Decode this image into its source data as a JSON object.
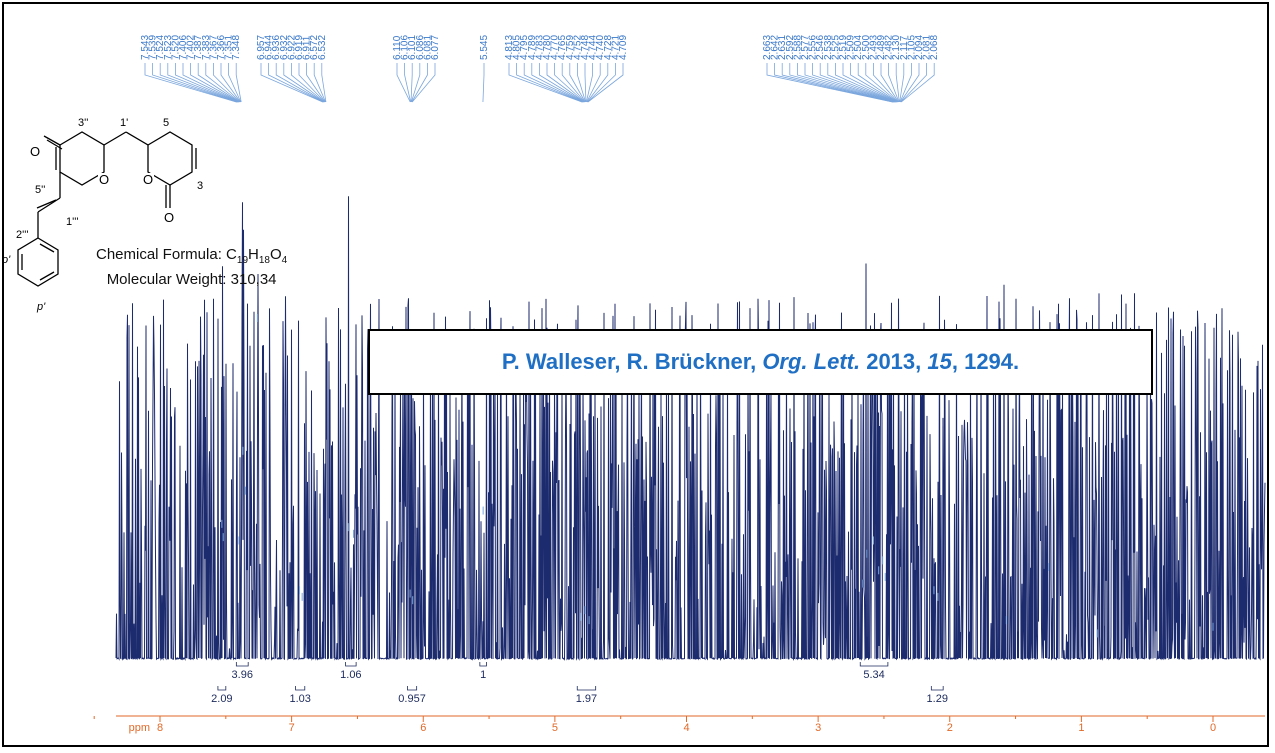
{
  "compound": {
    "formula_label": "Chemical Formula:",
    "formula_parts": [
      [
        "C",
        "19"
      ],
      [
        "H",
        "18"
      ],
      [
        "O",
        "4"
      ]
    ],
    "weight_label": "Molecular Weight:",
    "weight_value": "310,34",
    "atom_labels": [
      "3''",
      "1'",
      "5",
      "5''",
      "3",
      "2'''",
      "1'''",
      "o'",
      "p'"
    ]
  },
  "citation": {
    "authors": "P. Walleser, R. Brückner, ",
    "journal": "Org. Lett.",
    "year": " 2013, ",
    "volume": "15",
    "pages": ", 1294."
  },
  "chart_data": {
    "type": "line",
    "xlabel": "ppm",
    "x_reversed": true,
    "x_ticks": [
      "8",
      "7",
      "6",
      "5",
      "4",
      "3",
      "2",
      "1",
      "0"
    ],
    "xlim": [
      8.6,
      -0.6
    ],
    "peak_label_groups": [
      [
        "7.543",
        "7.539",
        "7.524",
        "7.523",
        "7.520",
        "7.406",
        "7.402",
        "7.387",
        "7.383",
        "7.367",
        "7.366",
        "7.351",
        "7.348"
      ],
      [
        "6.957",
        "6.944",
        "6.936",
        "6.932",
        "6.922",
        "6.919",
        "6.911",
        "6.572",
        "6.532"
      ],
      [
        "6.110",
        "6.106",
        "6.101",
        "6.086",
        "6.081",
        "6.077"
      ],
      [
        "5.545"
      ],
      [
        "4.813",
        "4.805",
        "4.795",
        "4.789",
        "4.783",
        "4.780",
        "4.770",
        "4.765",
        "4.759",
        "4.752",
        "4.748",
        "4.744",
        "4.740",
        "4.728",
        "4.721",
        "4.709"
      ],
      [
        "2.663",
        "2.642",
        "2.631",
        "2.592",
        "2.588",
        "2.577",
        "2.556",
        "2.546",
        "2.538",
        "2.525",
        "2.519",
        "2.509",
        "2.504",
        "2.500",
        "2.493",
        "2.489",
        "2.482",
        "2.130",
        "2.117",
        "2.105",
        "2.094",
        "2.081",
        "2.068"
      ]
    ],
    "peaks": [
      {
        "ppm": 7.53,
        "height": 0.38
      },
      {
        "ppm": 7.52,
        "height": 0.34
      },
      {
        "ppm": 7.4,
        "height": 0.33
      },
      {
        "ppm": 7.37,
        "height": 0.6
      },
      {
        "ppm": 7.35,
        "height": 0.48
      },
      {
        "ppm": 7.26,
        "height": 1.0
      },
      {
        "ppm": 6.94,
        "height": 0.18
      },
      {
        "ppm": 6.92,
        "height": 0.16
      },
      {
        "ppm": 6.57,
        "height": 0.37
      },
      {
        "ppm": 6.53,
        "height": 0.35
      },
      {
        "ppm": 6.1,
        "height": 0.17
      },
      {
        "ppm": 6.08,
        "height": 0.15
      },
      {
        "ppm": 5.545,
        "height": 0.42
      },
      {
        "ppm": 4.8,
        "height": 0.1
      },
      {
        "ppm": 4.77,
        "height": 0.12
      },
      {
        "ppm": 4.74,
        "height": 0.09
      },
      {
        "ppm": 2.66,
        "height": 0.2
      },
      {
        "ppm": 2.63,
        "height": 0.29
      },
      {
        "ppm": 2.58,
        "height": 0.33
      },
      {
        "ppm": 2.54,
        "height": 0.24
      },
      {
        "ppm": 2.51,
        "height": 0.27
      },
      {
        "ppm": 2.49,
        "height": 0.22
      },
      {
        "ppm": 2.12,
        "height": 0.18
      },
      {
        "ppm": 2.09,
        "height": 0.16
      },
      {
        "ppm": 1.57,
        "height": 0.09
      },
      {
        "ppm": 1.25,
        "height": 0.25
      },
      {
        "ppm": 0.88,
        "height": 0.05
      },
      {
        "ppm": 0.0,
        "height": 0.07
      }
    ],
    "integrals": [
      {
        "from": 7.56,
        "to": 7.5,
        "value": "2.09",
        "row": 2
      },
      {
        "from": 7.42,
        "to": 7.33,
        "value": "3.96",
        "row": 1
      },
      {
        "from": 6.97,
        "to": 6.9,
        "value": "1.03",
        "row": 2
      },
      {
        "from": 6.59,
        "to": 6.51,
        "value": "1.06",
        "row": 1
      },
      {
        "from": 6.12,
        "to": 6.05,
        "value": "0.957",
        "row": 2
      },
      {
        "from": 5.57,
        "to": 5.52,
        "value": "1",
        "row": 1
      },
      {
        "from": 4.83,
        "to": 4.69,
        "value": "1.97",
        "row": 2
      },
      {
        "from": 2.68,
        "to": 2.47,
        "value": "5.34",
        "row": 1
      },
      {
        "from": 2.14,
        "to": 2.05,
        "value": "1.29",
        "row": 2
      }
    ]
  }
}
